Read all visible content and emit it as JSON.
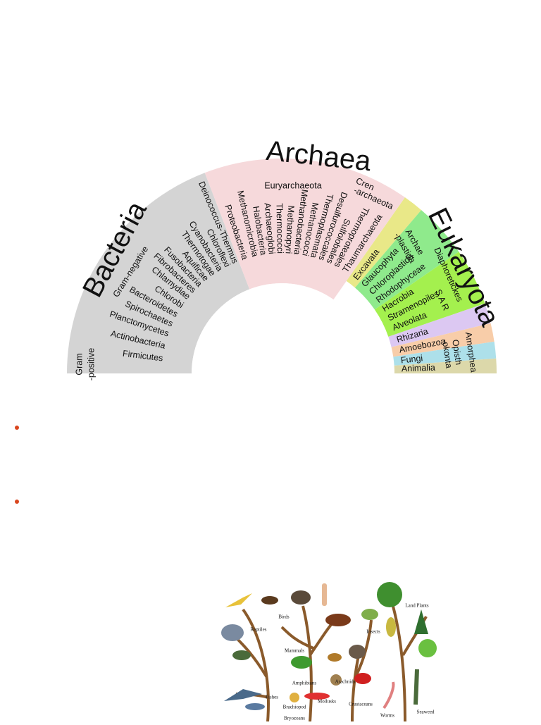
{
  "tree_of_life": {
    "domains": {
      "bacteria": "Bacteria",
      "archaea": "Archaea",
      "eukaryota": "Eukaryota"
    },
    "groups": {
      "gram_positive": [
        "Gram",
        "-positive"
      ],
      "gram_negative": "Gram-negative",
      "euryarchaeota": "Euryarchaeota",
      "crenarchaeota": [
        "Cren",
        "-archaeota"
      ],
      "archaeplastida": [
        "Archae",
        "-plastida"
      ],
      "diaphoretickes": "Diaphoretickes",
      "sar": "S A R",
      "amorphea": "Amorphea",
      "opisthokonta": [
        "Opisth",
        "-okonta"
      ]
    },
    "leaves": [
      "Firmicutes",
      "Actinobacteria",
      "Planctomycetes",
      "Spirochaetes",
      "Bacteroidetes",
      "Chlorobi",
      "Chlamydiae",
      "Fibrobacteres",
      "Fusobacteria",
      "Aquificae",
      "Thermotogae",
      "Cyanobacteria",
      "Chloroflexi",
      "Deinococcus-Thermus",
      "Proteobacteria",
      "Methanomicrobia",
      "Halobacteria",
      "Archaeoglobi",
      "Thermococci",
      "Methanopyri",
      "Methanobacteria",
      "Methanococci",
      "Thermoplasmata",
      "Desulfurococcales",
      "Sulfolobales",
      "Thermoproteales",
      "Thaumarchaeota",
      "Excavata",
      "Glaucophyta",
      "Chloroplastida",
      "Rhodophyceae",
      "Hacrobia",
      "Stramenopiles",
      "Alveolata",
      "Rhizaria",
      "Amoebozoa",
      "Fungi",
      "Animalia"
    ]
  },
  "animal_tree": {
    "labels": [
      "Birds",
      "Land Plants",
      "Reptiles",
      "Mammals",
      "Insects",
      "Amphibians",
      "Arachnids",
      "Fishes",
      "Brachiopod",
      "Mollusks",
      "Crustaceans",
      "Worms",
      "Seaweed",
      "Bryozoans"
    ]
  }
}
